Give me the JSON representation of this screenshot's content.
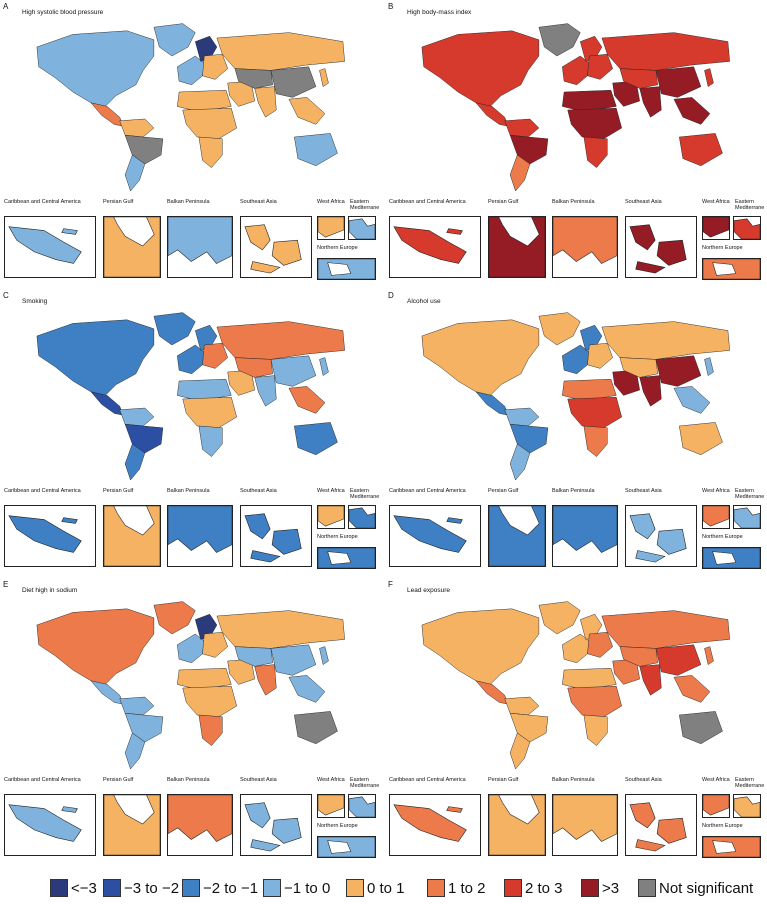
{
  "inset_labels": {
    "caribbean": "Caribbean and Central America",
    "persian": "Persian Gulf",
    "balkan": "Balkan Peninsula",
    "seasia": "Southeast Asia",
    "westafrica": "West Africa",
    "eastmed": "Eastern Mediterrane",
    "northeu": "Northern Europe"
  },
  "legend": [
    {
      "label": "<−3",
      "color": "#2b3a7a"
    },
    {
      "label": "−3 to −2",
      "color": "#2d4fa3"
    },
    {
      "label": "−2 to −1",
      "color": "#3f7fc4"
    },
    {
      "label": "−1 to 0",
      "color": "#7fb3de"
    },
    {
      "label": "0 to 1",
      "color": "#f6b263"
    },
    {
      "label": "1 to 2",
      "color": "#ec7a4a"
    },
    {
      "label": "2 to 3",
      "color": "#d63a2c"
    },
    {
      "label": ">3",
      "color": "#951c24"
    },
    {
      "label": "Not significant",
      "color": "#808080"
    }
  ],
  "panels": [
    {
      "letter": "A",
      "title": "High systolic blood pressure",
      "regions": {
        "north_america": "lightblue",
        "greenland": "lightblue",
        "central_america": "salmon",
        "south_america_n": "orange",
        "south_america_brazil": "gray",
        "south_america_s": "lightblue",
        "europe_w": "lightblue",
        "scandinavia": "navy",
        "eastern_europe": "orange",
        "russia": "orange",
        "africa_n": "orange",
        "africa_sub": "orange",
        "africa_s": "orange",
        "middle_east": "orange",
        "central_asia": "gray",
        "south_asia": "orange",
        "china": "gray",
        "se_asia": "orange",
        "australia": "lightblue",
        "japan": "orange"
      },
      "insets": {
        "caribbean": "lightblue",
        "persian": "orange",
        "balkan": "lightblue",
        "seasia": "orange",
        "westafrica": "orange",
        "eastmed": "lightblue",
        "northeu": "lightblue"
      }
    },
    {
      "letter": "B",
      "title": "High body-mass index",
      "regions": {
        "north_america": "red",
        "greenland": "gray",
        "central_america": "red",
        "south_america_n": "red",
        "south_america_brazil": "darkred",
        "south_america_s": "salmon",
        "europe_w": "red",
        "scandinavia": "red",
        "eastern_europe": "red",
        "russia": "red",
        "africa_n": "darkred",
        "africa_sub": "darkred",
        "africa_s": "red",
        "middle_east": "darkred",
        "central_asia": "red",
        "south_asia": "darkred",
        "china": "darkred",
        "se_asia": "darkred",
        "australia": "red",
        "japan": "red"
      },
      "insets": {
        "caribbean": "red",
        "persian": "darkred",
        "balkan": "salmon",
        "seasia": "darkred",
        "westafrica": "darkred",
        "eastmed": "red",
        "northeu": "salmon"
      }
    },
    {
      "letter": "C",
      "title": "Smoking",
      "regions": {
        "north_america": "mid",
        "greenland": "mid",
        "central_america": "blue",
        "south_america_n": "lightblue",
        "south_america_brazil": "blue",
        "south_america_s": "mid",
        "europe_w": "mid",
        "scandinavia": "mid",
        "eastern_europe": "salmon",
        "russia": "salmon",
        "africa_n": "lightblue",
        "africa_sub": "orange",
        "africa_s": "lightblue",
        "middle_east": "orange",
        "central_asia": "salmon",
        "south_asia": "lightblue",
        "china": "lightblue",
        "se_asia": "salmon",
        "australia": "mid",
        "japan": "lightblue"
      },
      "insets": {
        "caribbean": "mid",
        "persian": "orange",
        "balkan": "mid",
        "seasia": "mid",
        "westafrica": "orange",
        "eastmed": "mid",
        "northeu": "mid"
      }
    },
    {
      "letter": "D",
      "title": "Alcohol use",
      "regions": {
        "north_america": "orange",
        "greenland": "orange",
        "central_america": "mid",
        "south_america_n": "lightblue",
        "south_america_brazil": "mid",
        "south_america_s": "lightblue",
        "europe_w": "mid",
        "scandinavia": "mid",
        "eastern_europe": "orange",
        "russia": "orange",
        "africa_n": "salmon",
        "africa_sub": "red",
        "africa_s": "salmon",
        "middle_east": "darkred",
        "central_asia": "orange",
        "south_asia": "darkred",
        "china": "darkred",
        "se_asia": "lightblue",
        "australia": "orange",
        "japan": "lightblue"
      },
      "insets": {
        "caribbean": "mid",
        "persian": "mid",
        "balkan": "mid",
        "seasia": "lightblue",
        "westafrica": "salmon",
        "eastmed": "lightblue",
        "northeu": "mid"
      }
    },
    {
      "letter": "E",
      "title": "Diet high in sodium",
      "regions": {
        "north_america": "salmon",
        "greenland": "salmon",
        "central_america": "lightblue",
        "south_america_n": "lightblue",
        "south_america_brazil": "lightblue",
        "south_america_s": "lightblue",
        "europe_w": "lightblue",
        "scandinavia": "navy",
        "eastern_europe": "orange",
        "russia": "orange",
        "africa_n": "orange",
        "africa_sub": "orange",
        "africa_s": "salmon",
        "middle_east": "orange",
        "central_asia": "lightblue",
        "south_asia": "salmon",
        "china": "lightblue",
        "se_asia": "lightblue",
        "australia": "gray",
        "japan": "lightblue"
      },
      "insets": {
        "caribbean": "lightblue",
        "persian": "orange",
        "balkan": "salmon",
        "seasia": "lightblue",
        "westafrica": "orange",
        "eastmed": "lightblue",
        "northeu": "lightblue"
      }
    },
    {
      "letter": "F",
      "title": "Lead exposure",
      "regions": {
        "north_america": "orange",
        "greenland": "orange",
        "central_america": "salmon",
        "south_america_n": "orange",
        "south_america_brazil": "orange",
        "south_america_s": "orange",
        "europe_w": "orange",
        "scandinavia": "orange",
        "eastern_europe": "salmon",
        "russia": "salmon",
        "africa_n": "orange",
        "africa_sub": "salmon",
        "africa_s": "orange",
        "middle_east": "salmon",
        "central_asia": "salmon",
        "south_asia": "red",
        "china": "red",
        "se_asia": "salmon",
        "australia": "gray",
        "japan": "salmon"
      },
      "insets": {
        "caribbean": "salmon",
        "persian": "orange",
        "balkan": "orange",
        "seasia": "salmon",
        "westafrica": "salmon",
        "eastmed": "orange",
        "northeu": "salmon"
      }
    }
  ]
}
